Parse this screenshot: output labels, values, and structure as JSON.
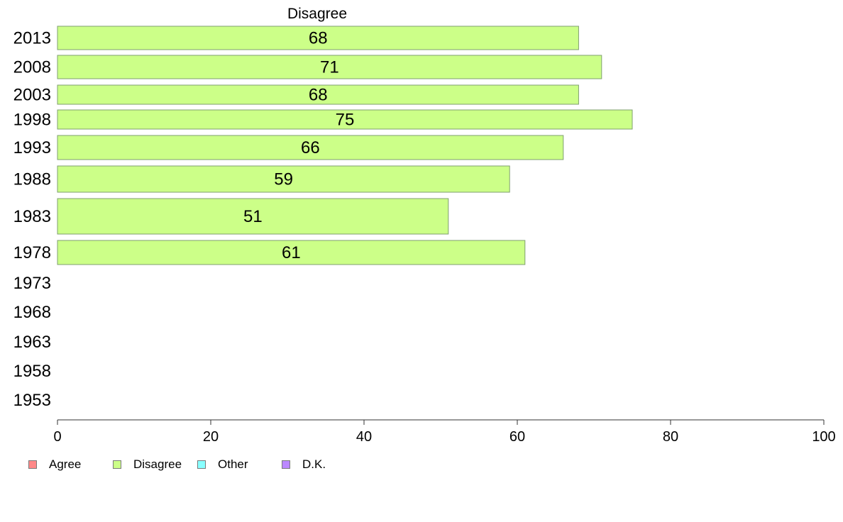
{
  "chart_data": {
    "type": "bar",
    "orientation": "horizontal",
    "title": "Disagree",
    "categories": [
      "2013",
      "2008",
      "2003",
      "1998",
      "1993",
      "1988",
      "1983",
      "1978",
      "1973",
      "1968",
      "1963",
      "1958",
      "1953"
    ],
    "series": [
      {
        "name": "Disagree",
        "color": "#ccff88",
        "values": [
          68,
          71,
          68,
          75,
          66,
          59,
          51,
          61,
          null,
          null,
          null,
          null,
          null
        ],
        "labels": [
          "68",
          "71",
          "68",
          "75",
          "66",
          "59",
          "51",
          "61",
          "",
          "",
          "",
          "",
          ""
        ]
      }
    ],
    "xlim": [
      0,
      100
    ],
    "xticks": [
      "0",
      "20",
      "40",
      "60",
      "80",
      "100"
    ],
    "grid": false,
    "legend": {
      "placement": "bottom-left",
      "items": [
        {
          "label": "Agree",
          "color": "#ff8888"
        },
        {
          "label": "Disagree",
          "color": "#ccff88"
        },
        {
          "label": "Other",
          "color": "#88ffff"
        },
        {
          "label": "D.K.",
          "color": "#bb88ff"
        }
      ]
    }
  }
}
